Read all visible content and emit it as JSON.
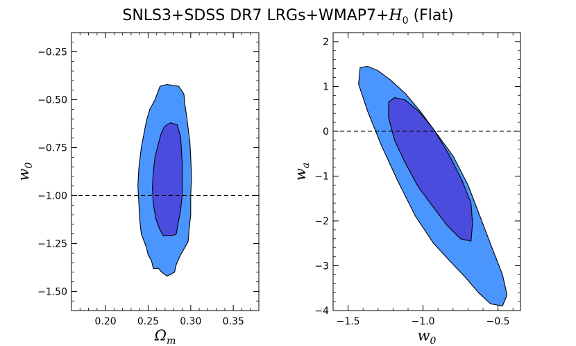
{
  "title": {
    "prefix": "SNLS3+SDSS DR7 LRGs+WMAP7+",
    "math": "H",
    "math_sub": "0",
    "suffix": " (Flat)"
  },
  "chart_data": [
    {
      "type": "contour",
      "name": "left",
      "xlabel": "Ω",
      "xlabel_sub": "m",
      "ylabel": "w",
      "ylabel_sub": "0",
      "xlim": [
        0.16,
        0.38
      ],
      "ylim": [
        -1.6,
        -0.15
      ],
      "xticks": [
        0.2,
        0.25,
        0.3,
        0.35
      ],
      "xtick_labels": [
        "0.20",
        "0.25",
        "0.30",
        "0.35"
      ],
      "yticks": [
        -1.5,
        -1.25,
        -1.0,
        -0.75,
        -0.5,
        -0.25
      ],
      "ytick_labels": [
        "−1.50",
        "−1.25",
        "−1.00",
        "−0.75",
        "−0.50",
        "−0.25"
      ],
      "reference_line": {
        "axis": "y",
        "value": -1.0,
        "style": "dashed"
      },
      "colors": {
        "outer": "#4b95ff",
        "inner": "#4b4bde",
        "edge": "#000000"
      },
      "contours": {
        "outer_95": [
          [
            0.272,
            -0.42
          ],
          [
            0.286,
            -0.43
          ],
          [
            0.292,
            -0.47
          ],
          [
            0.293,
            -0.52
          ],
          [
            0.295,
            -0.58
          ],
          [
            0.297,
            -0.65
          ],
          [
            0.299,
            -0.72
          ],
          [
            0.3,
            -0.8
          ],
          [
            0.301,
            -0.9
          ],
          [
            0.3,
            -1.0
          ],
          [
            0.3,
            -1.1
          ],
          [
            0.298,
            -1.18
          ],
          [
            0.297,
            -1.24
          ],
          [
            0.292,
            -1.28
          ],
          [
            0.288,
            -1.31
          ],
          [
            0.283,
            -1.36
          ],
          [
            0.281,
            -1.4
          ],
          [
            0.277,
            -1.41
          ],
          [
            0.272,
            -1.42
          ],
          [
            0.266,
            -1.4
          ],
          [
            0.262,
            -1.38
          ],
          [
            0.256,
            -1.38
          ],
          [
            0.254,
            -1.34
          ],
          [
            0.25,
            -1.31
          ],
          [
            0.248,
            -1.27
          ],
          [
            0.242,
            -1.2
          ],
          [
            0.24,
            -1.12
          ],
          [
            0.239,
            -1.03
          ],
          [
            0.238,
            -0.95
          ],
          [
            0.239,
            -0.86
          ],
          [
            0.242,
            -0.75
          ],
          [
            0.245,
            -0.68
          ],
          [
            0.248,
            -0.61
          ],
          [
            0.252,
            -0.55
          ],
          [
            0.258,
            -0.5
          ],
          [
            0.264,
            -0.43
          ],
          [
            0.272,
            -0.42
          ]
        ],
        "inner_68": [
          [
            0.276,
            -0.62
          ],
          [
            0.284,
            -0.63
          ],
          [
            0.288,
            -0.69
          ],
          [
            0.289,
            -0.75
          ],
          [
            0.29,
            -0.83
          ],
          [
            0.29,
            -0.92
          ],
          [
            0.29,
            -1.0
          ],
          [
            0.288,
            -1.08
          ],
          [
            0.285,
            -1.15
          ],
          [
            0.283,
            -1.2
          ],
          [
            0.278,
            -1.21
          ],
          [
            0.268,
            -1.21
          ],
          [
            0.263,
            -1.17
          ],
          [
            0.259,
            -1.12
          ],
          [
            0.256,
            -1.04
          ],
          [
            0.255,
            -0.96
          ],
          [
            0.256,
            -0.88
          ],
          [
            0.258,
            -0.8
          ],
          [
            0.262,
            -0.73
          ],
          [
            0.265,
            -0.68
          ],
          [
            0.269,
            -0.64
          ],
          [
            0.276,
            -0.62
          ]
        ]
      }
    },
    {
      "type": "contour",
      "name": "right",
      "xlabel": "w",
      "xlabel_sub": "0",
      "ylabel": "w",
      "ylabel_sub": "a",
      "xlim": [
        -1.6,
        -0.35
      ],
      "ylim": [
        -4.0,
        2.2
      ],
      "xticks": [
        -1.5,
        -1.0,
        -0.5
      ],
      "xtick_labels": [
        "−1.5",
        "−1.0",
        "−0.5"
      ],
      "yticks": [
        -4,
        -3,
        -2,
        -1,
        0,
        1,
        2
      ],
      "ytick_labels": [
        "−4",
        "−3",
        "−2",
        "−1",
        "0",
        "1",
        "2"
      ],
      "reference_line": {
        "axis": "y",
        "value": 0,
        "style": "dashed"
      },
      "colors": {
        "outer": "#4b95ff",
        "inner": "#4b4bde",
        "edge": "#000000"
      },
      "contours": {
        "outer_95": [
          [
            -1.42,
            1.42
          ],
          [
            -1.37,
            1.45
          ],
          [
            -1.3,
            1.35
          ],
          [
            -1.22,
            1.15
          ],
          [
            -1.12,
            0.85
          ],
          [
            -1.02,
            0.45
          ],
          [
            -0.92,
            0.0
          ],
          [
            -0.8,
            -0.55
          ],
          [
            -0.7,
            -1.2
          ],
          [
            -0.62,
            -1.9
          ],
          [
            -0.54,
            -2.6
          ],
          [
            -0.47,
            -3.2
          ],
          [
            -0.44,
            -3.65
          ],
          [
            -0.47,
            -3.9
          ],
          [
            -0.55,
            -3.85
          ],
          [
            -0.63,
            -3.6
          ],
          [
            -0.72,
            -3.25
          ],
          [
            -0.82,
            -2.9
          ],
          [
            -0.93,
            -2.5
          ],
          [
            -1.05,
            -1.9
          ],
          [
            -1.17,
            -1.1
          ],
          [
            -1.28,
            -0.3
          ],
          [
            -1.37,
            0.45
          ],
          [
            -1.43,
            1.05
          ],
          [
            -1.42,
            1.42
          ]
        ],
        "inner_68": [
          [
            -1.19,
            0.75
          ],
          [
            -1.12,
            0.7
          ],
          [
            -1.03,
            0.45
          ],
          [
            -0.93,
            0.05
          ],
          [
            -0.83,
            -0.5
          ],
          [
            -0.74,
            -1.1
          ],
          [
            -0.68,
            -1.6
          ],
          [
            -0.67,
            -2.05
          ],
          [
            -0.68,
            -2.45
          ],
          [
            -0.75,
            -2.4
          ],
          [
            -0.84,
            -2.1
          ],
          [
            -0.93,
            -1.7
          ],
          [
            -1.03,
            -1.25
          ],
          [
            -1.12,
            -0.7
          ],
          [
            -1.19,
            -0.2
          ],
          [
            -1.23,
            0.3
          ],
          [
            -1.23,
            0.65
          ],
          [
            -1.19,
            0.75
          ]
        ]
      }
    }
  ]
}
